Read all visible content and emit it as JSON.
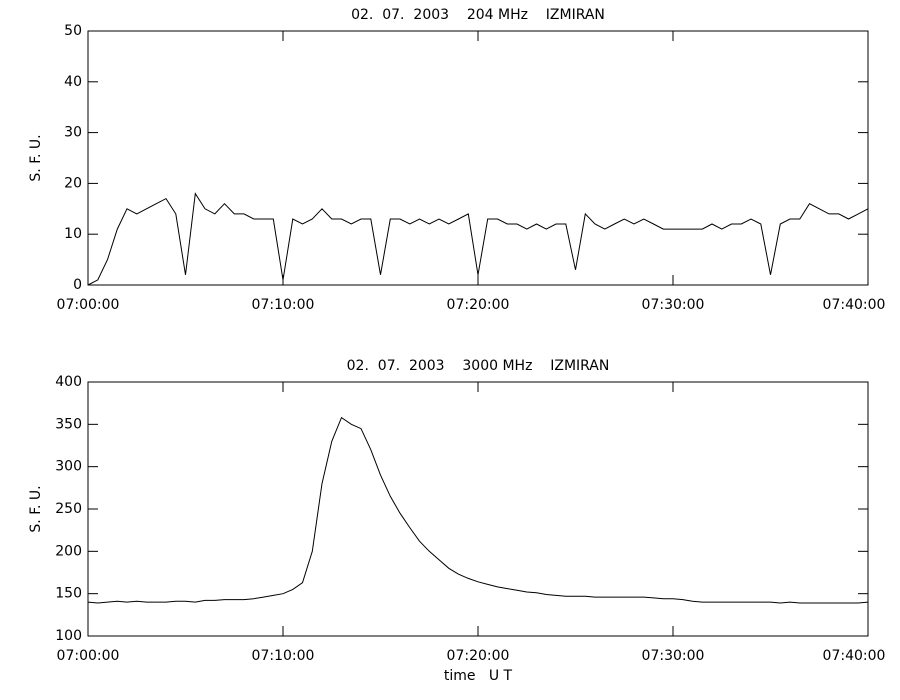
{
  "chart_data": [
    {
      "type": "line",
      "title": "02.  07.  2003    204 MHz    IZMIRAN",
      "y_label": "S. F. U.",
      "color": "#000000",
      "x": [
        "07:00:00",
        "07:00:30",
        "07:01:00",
        "07:01:30",
        "07:02:00",
        "07:02:30",
        "07:03:00",
        "07:03:30",
        "07:04:00",
        "07:04:30",
        "07:05:00",
        "07:05:30",
        "07:06:00",
        "07:06:30",
        "07:07:00",
        "07:07:30",
        "07:08:00",
        "07:08:30",
        "07:09:00",
        "07:09:30",
        "07:10:00",
        "07:10:30",
        "07:11:00",
        "07:11:30",
        "07:12:00",
        "07:12:30",
        "07:13:00",
        "07:13:30",
        "07:14:00",
        "07:14:30",
        "07:15:00",
        "07:15:30",
        "07:16:00",
        "07:16:30",
        "07:17:00",
        "07:17:30",
        "07:18:00",
        "07:18:30",
        "07:19:00",
        "07:19:30",
        "07:20:00",
        "07:20:30",
        "07:21:00",
        "07:21:30",
        "07:22:00",
        "07:22:30",
        "07:23:00",
        "07:23:30",
        "07:24:00",
        "07:24:30",
        "07:25:00",
        "07:25:30",
        "07:26:00",
        "07:26:30",
        "07:27:00",
        "07:27:30",
        "07:28:00",
        "07:28:30",
        "07:29:00",
        "07:29:30",
        "07:30:00",
        "07:30:30",
        "07:31:00",
        "07:31:30",
        "07:32:00",
        "07:32:30",
        "07:33:00",
        "07:33:30",
        "07:34:00",
        "07:34:30",
        "07:35:00",
        "07:35:30",
        "07:36:00",
        "07:36:30",
        "07:37:00",
        "07:37:30",
        "07:38:00",
        "07:38:30",
        "07:39:00",
        "07:39:30",
        "07:40:00"
      ],
      "values": [
        0,
        1,
        5,
        11,
        15,
        14,
        15,
        16,
        17,
        14,
        2,
        18,
        15,
        14,
        16,
        14,
        14,
        13,
        13,
        13,
        1,
        13,
        12,
        13,
        15,
        13,
        13,
        12,
        13,
        13,
        2,
        13,
        13,
        12,
        13,
        12,
        13,
        12,
        13,
        14,
        2,
        13,
        13,
        12,
        12,
        11,
        12,
        11,
        12,
        12,
        3,
        14,
        12,
        11,
        12,
        13,
        12,
        13,
        12,
        11,
        11,
        11,
        11,
        11,
        12,
        11,
        12,
        12,
        13,
        12,
        2,
        12,
        13,
        13,
        16,
        15,
        14,
        14,
        13,
        14,
        15
      ],
      "xlim": [
        "07:00:00",
        "07:40:00"
      ],
      "xticks": [
        "07:00:00",
        "07:10:00",
        "07:20:00",
        "07:30:00",
        "07:40:00"
      ],
      "ylim": [
        0,
        50
      ],
      "yticks": [
        0,
        10,
        20,
        30,
        40,
        50
      ]
    },
    {
      "type": "line",
      "title": "02.  07.  2003    3000 MHz    IZMIRAN",
      "y_label": "S. F. U.",
      "x_label": "time   U T",
      "color": "#000000",
      "x": [
        "07:00:00",
        "07:00:30",
        "07:01:00",
        "07:01:30",
        "07:02:00",
        "07:02:30",
        "07:03:00",
        "07:03:30",
        "07:04:00",
        "07:04:30",
        "07:05:00",
        "07:05:30",
        "07:06:00",
        "07:06:30",
        "07:07:00",
        "07:07:30",
        "07:08:00",
        "07:08:30",
        "07:09:00",
        "07:09:30",
        "07:10:00",
        "07:10:30",
        "07:11:00",
        "07:11:30",
        "07:12:00",
        "07:12:30",
        "07:13:00",
        "07:13:30",
        "07:14:00",
        "07:14:30",
        "07:15:00",
        "07:15:30",
        "07:16:00",
        "07:16:30",
        "07:17:00",
        "07:17:30",
        "07:18:00",
        "07:18:30",
        "07:19:00",
        "07:19:30",
        "07:20:00",
        "07:20:30",
        "07:21:00",
        "07:21:30",
        "07:22:00",
        "07:22:30",
        "07:23:00",
        "07:23:30",
        "07:24:00",
        "07:24:30",
        "07:25:00",
        "07:25:30",
        "07:26:00",
        "07:26:30",
        "07:27:00",
        "07:27:30",
        "07:28:00",
        "07:28:30",
        "07:29:00",
        "07:29:30",
        "07:30:00",
        "07:30:30",
        "07:31:00",
        "07:31:30",
        "07:32:00",
        "07:32:30",
        "07:33:00",
        "07:33:30",
        "07:34:00",
        "07:34:30",
        "07:35:00",
        "07:35:30",
        "07:36:00",
        "07:36:30",
        "07:37:00",
        "07:37:30",
        "07:38:00",
        "07:38:30",
        "07:39:00",
        "07:39:30",
        "07:40:00"
      ],
      "values": [
        140,
        139,
        140,
        141,
        140,
        141,
        140,
        140,
        140,
        141,
        141,
        140,
        142,
        142,
        143,
        143,
        143,
        144,
        146,
        148,
        150,
        155,
        163,
        200,
        280,
        330,
        358,
        350,
        345,
        320,
        290,
        265,
        245,
        228,
        212,
        200,
        190,
        180,
        173,
        168,
        164,
        161,
        158,
        156,
        154,
        152,
        151,
        149,
        148,
        147,
        147,
        147,
        146,
        146,
        146,
        146,
        146,
        146,
        145,
        144,
        144,
        143,
        141,
        140,
        140,
        140,
        140,
        140,
        140,
        140,
        140,
        139,
        140,
        139,
        139,
        139,
        139,
        139,
        139,
        139,
        140
      ],
      "xlim": [
        "07:00:00",
        "07:40:00"
      ],
      "xticks": [
        "07:00:00",
        "07:10:00",
        "07:20:00",
        "07:30:00",
        "07:40:00"
      ],
      "ylim": [
        100,
        400
      ],
      "yticks": [
        100,
        150,
        200,
        250,
        300,
        350,
        400
      ]
    }
  ]
}
